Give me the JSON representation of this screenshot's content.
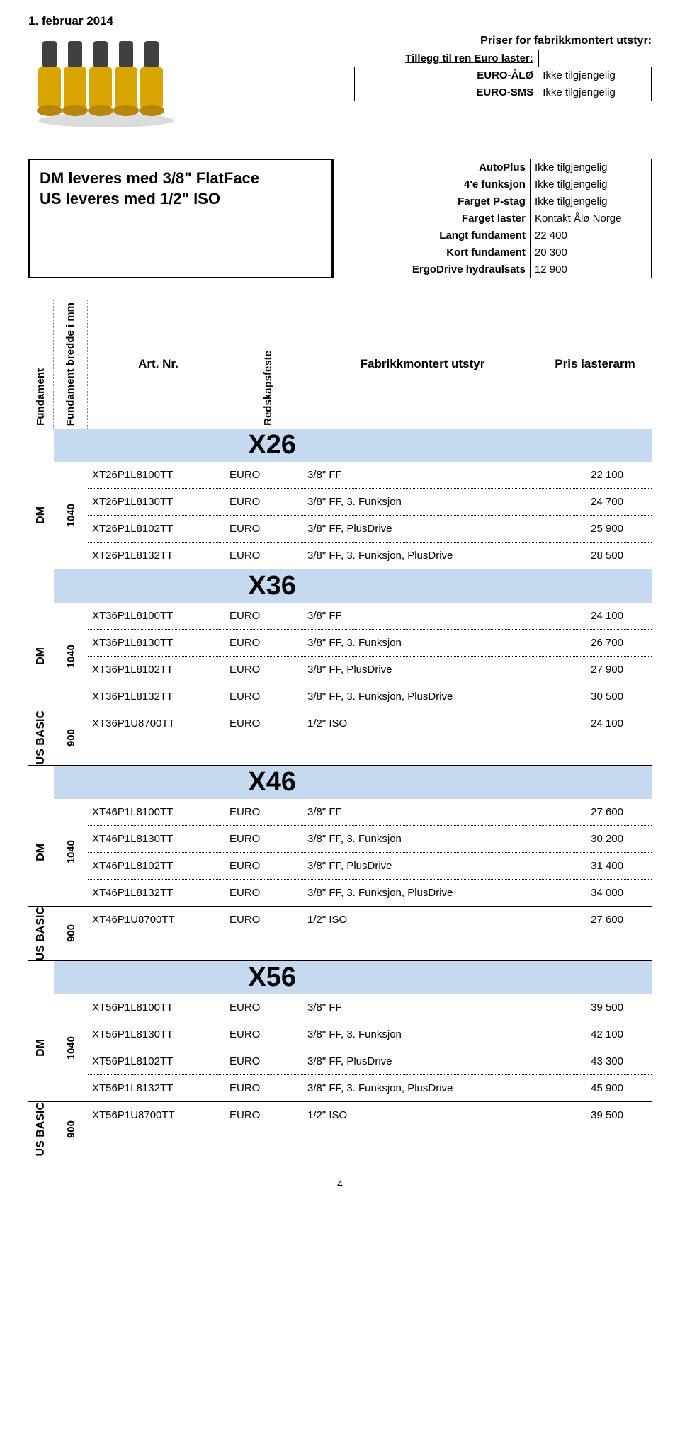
{
  "date": "1. februar 2014",
  "top": {
    "priser_header": "Priser for fabrikkmontert utstyr:",
    "tillegg_label": "Tillegg til ren Euro laster:",
    "rows": [
      {
        "label": "EURO-ÅLØ",
        "value": "Ikke tilgjengelig"
      },
      {
        "label": "EURO-SMS",
        "value": "Ikke tilgjengelig"
      }
    ]
  },
  "mid_left": {
    "line1": "DM leveres med 3/8\" FlatFace",
    "line2": "US leveres med 1/2\" ISO"
  },
  "options": [
    {
      "label": "AutoPlus",
      "value": "Ikke tilgjengelig"
    },
    {
      "label": "4'e funksjon",
      "value": "Ikke tilgjengelig"
    },
    {
      "label": "Farget P-stag",
      "value": "Ikke tilgjengelig"
    },
    {
      "label": "Farget laster",
      "value": "Kontakt Ålø Norge"
    },
    {
      "label": "Langt fundament",
      "value": "22 400"
    },
    {
      "label": "Kort fundament",
      "value": "20 300"
    },
    {
      "label": "ErgoDrive hydraulsats",
      "value": "12 900"
    }
  ],
  "headers": {
    "fundament": "Fundament",
    "bredde": "Fundament bredde i mm",
    "art": "Art. Nr.",
    "feste": "Redskapsfeste",
    "fab": "Fabrikkmontert utstyr",
    "pris": "Pris lasterarm"
  },
  "sections": [
    {
      "model": "X26",
      "groups": [
        {
          "side": "DM",
          "width": "1040",
          "rows": [
            {
              "art": "XT26P1L8100TT",
              "feste": "EURO",
              "fab": "3/8\" FF",
              "pris": "22 100"
            },
            {
              "art": "XT26P1L8130TT",
              "feste": "EURO",
              "fab": "3/8\" FF, 3. Funksjon",
              "pris": "24 700"
            },
            {
              "art": "XT26P1L8102TT",
              "feste": "EURO",
              "fab": "3/8\" FF, PlusDrive",
              "pris": "25 900"
            },
            {
              "art": "XT26P1L8132TT",
              "feste": "EURO",
              "fab": "3/8\" FF, 3. Funksjon, PlusDrive",
              "pris": "28 500"
            }
          ]
        }
      ]
    },
    {
      "model": "X36",
      "groups": [
        {
          "side": "DM",
          "width": "1040",
          "rows": [
            {
              "art": "XT36P1L8100TT",
              "feste": "EURO",
              "fab": "3/8\" FF",
              "pris": "24 100"
            },
            {
              "art": "XT36P1L8130TT",
              "feste": "EURO",
              "fab": "3/8\" FF, 3. Funksjon",
              "pris": "26 700"
            },
            {
              "art": "XT36P1L8102TT",
              "feste": "EURO",
              "fab": "3/8\" FF, PlusDrive",
              "pris": "27 900"
            },
            {
              "art": "XT36P1L8132TT",
              "feste": "EURO",
              "fab": "3/8\" FF, 3. Funksjon, PlusDrive",
              "pris": "30 500"
            }
          ]
        },
        {
          "side": "US BASIC",
          "width": "900",
          "rows": [
            {
              "art": "XT36P1U8700TT",
              "feste": "EURO",
              "fab": "1/2\" ISO",
              "pris": "24 100"
            }
          ]
        }
      ]
    },
    {
      "model": "X46",
      "groups": [
        {
          "side": "DM",
          "width": "1040",
          "rows": [
            {
              "art": "XT46P1L8100TT",
              "feste": "EURO",
              "fab": "3/8\" FF",
              "pris": "27 600"
            },
            {
              "art": "XT46P1L8130TT",
              "feste": "EURO",
              "fab": "3/8\" FF, 3. Funksjon",
              "pris": "30 200"
            },
            {
              "art": "XT46P1L8102TT",
              "feste": "EURO",
              "fab": "3/8\" FF, PlusDrive",
              "pris": "31 400"
            },
            {
              "art": "XT46P1L8132TT",
              "feste": "EURO",
              "fab": "3/8\" FF, 3. Funksjon, PlusDrive",
              "pris": "34 000"
            }
          ]
        },
        {
          "side": "US BASIC",
          "width": "900",
          "rows": [
            {
              "art": "XT46P1U8700TT",
              "feste": "EURO",
              "fab": "1/2\" ISO",
              "pris": "27 600"
            }
          ]
        }
      ]
    },
    {
      "model": "X56",
      "groups": [
        {
          "side": "DM",
          "width": "1040",
          "rows": [
            {
              "art": "XT56P1L8100TT",
              "feste": "EURO",
              "fab": "3/8\" FF",
              "pris": "39 500"
            },
            {
              "art": "XT56P1L8130TT",
              "feste": "EURO",
              "fab": "3/8\" FF, 3. Funksjon",
              "pris": "42 100"
            },
            {
              "art": "XT56P1L8102TT",
              "feste": "EURO",
              "fab": "3/8\" FF, PlusDrive",
              "pris": "43 300"
            },
            {
              "art": "XT56P1L8132TT",
              "feste": "EURO",
              "fab": "3/8\" FF, 3. Funksjon, PlusDrive",
              "pris": "45 900"
            }
          ]
        },
        {
          "side": "US BASIC",
          "width": "900",
          "rows": [
            {
              "art": "XT56P1U8700TT",
              "feste": "EURO",
              "fab": "1/2\" ISO",
              "pris": "39 500"
            }
          ]
        }
      ]
    }
  ],
  "page_number": "4",
  "colors": {
    "band": "#c5d9f1",
    "coupler_body": "#d9a300",
    "coupler_top": "#404040"
  }
}
